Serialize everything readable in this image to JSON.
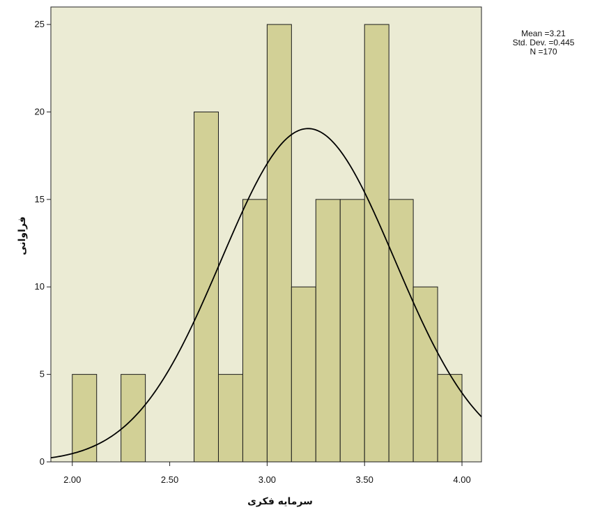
{
  "chart_data": {
    "type": "bar",
    "title": "",
    "xlabel": "سرمایه فکری",
    "ylabel": "فراوانی",
    "xlim": [
      1.89,
      4.1
    ],
    "ylim": [
      0,
      26
    ],
    "x_ticks": [
      2.0,
      2.5,
      3.0,
      3.5,
      4.0
    ],
    "x_tick_labels": [
      "2.00",
      "2.50",
      "3.00",
      "3.50",
      "4.00"
    ],
    "y_ticks": [
      0,
      5,
      10,
      15,
      20,
      25
    ],
    "y_tick_labels": [
      "0",
      "5",
      "10",
      "15",
      "20",
      "25"
    ],
    "bars": [
      {
        "x0": 2.0,
        "x1": 2.125,
        "value": 5
      },
      {
        "x0": 2.25,
        "x1": 2.375,
        "value": 5
      },
      {
        "x0": 2.625,
        "x1": 2.75,
        "value": 20
      },
      {
        "x0": 2.75,
        "x1": 2.875,
        "value": 5
      },
      {
        "x0": 2.875,
        "x1": 3.0,
        "value": 15
      },
      {
        "x0": 3.0,
        "x1": 3.125,
        "value": 25
      },
      {
        "x0": 3.125,
        "x1": 3.25,
        "value": 10
      },
      {
        "x0": 3.25,
        "x1": 3.375,
        "value": 15
      },
      {
        "x0": 3.375,
        "x1": 3.5,
        "value": 15
      },
      {
        "x0": 3.5,
        "x1": 3.625,
        "value": 25
      },
      {
        "x0": 3.625,
        "x1": 3.75,
        "value": 15
      },
      {
        "x0": 3.75,
        "x1": 3.875,
        "value": 10
      },
      {
        "x0": 3.875,
        "x1": 4.0,
        "value": 5
      }
    ],
    "normal_curve": {
      "mean": 3.21,
      "std_dev": 0.445,
      "n": 170
    },
    "stats_labels": {
      "mean": "Mean =3.21",
      "std_dev": "Std. Dev. =0.445",
      "n": "N =170"
    },
    "grid": false,
    "colors": {
      "plot_background": "#ebebd4",
      "bar_fill": "#d2d096",
      "bar_stroke": "#1a1a1a",
      "curve": "#000000"
    }
  }
}
